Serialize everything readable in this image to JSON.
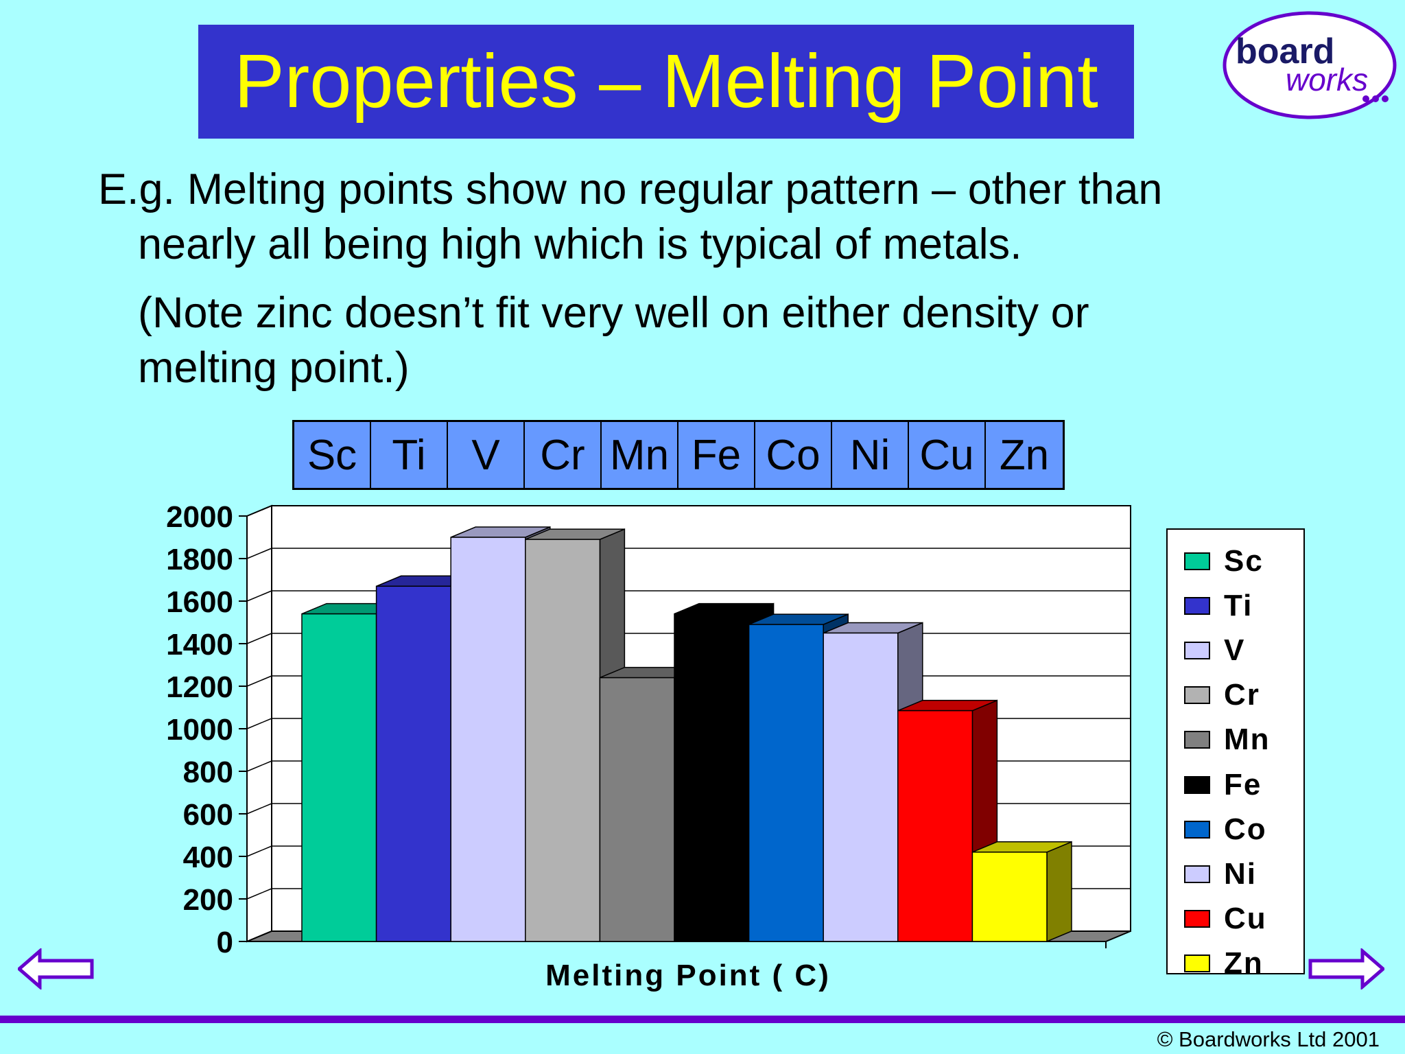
{
  "slide": {
    "title": "Properties – Melting Point",
    "line1": "E.g. Melting points show no regular pattern – other than",
    "line2": "nearly all being high which is typical of metals.",
    "note_line1": "(Note zinc doesn’t fit very well on either density or",
    "note_line2": "melting point.)",
    "copyright": "© Boardworks Ltd 2001"
  },
  "logo": {
    "word1": "board",
    "word2": "works"
  },
  "element_strip": [
    "Sc",
    "Ti",
    "V",
    "Cr",
    "Mn",
    "Fe",
    "Co",
    "Ni",
    "Cu",
    "Zn"
  ],
  "chart_data": {
    "type": "bar",
    "style": "3d",
    "title": "",
    "xlabel": "Melting Point ( C)",
    "ylabel": "",
    "ylim": [
      0,
      2000
    ],
    "yticks": [
      0,
      200,
      400,
      600,
      800,
      1000,
      1200,
      1400,
      1600,
      1800,
      2000
    ],
    "grid": true,
    "legend_position": "right",
    "series": [
      {
        "name": "Sc",
        "value": 1540,
        "color": "#00cc99"
      },
      {
        "name": "Ti",
        "value": 1670,
        "color": "#3333cc"
      },
      {
        "name": "V",
        "value": 1900,
        "color": "#ccccff"
      },
      {
        "name": "Cr",
        "value": 1890,
        "color": "#b2b2b2"
      },
      {
        "name": "Mn",
        "value": 1240,
        "color": "#808080"
      },
      {
        "name": "Fe",
        "value": 1540,
        "color": "#000000"
      },
      {
        "name": "Co",
        "value": 1490,
        "color": "#0066cc"
      },
      {
        "name": "Ni",
        "value": 1450,
        "color": "#ccccff"
      },
      {
        "name": "Cu",
        "value": 1085,
        "color": "#ff0000"
      },
      {
        "name": "Zn",
        "value": 420,
        "color": "#ffff00"
      }
    ]
  },
  "nav": {
    "prev_icon": "left-arrow-icon",
    "next_icon": "right-arrow-icon",
    "arrow_color": "#6600cc"
  }
}
